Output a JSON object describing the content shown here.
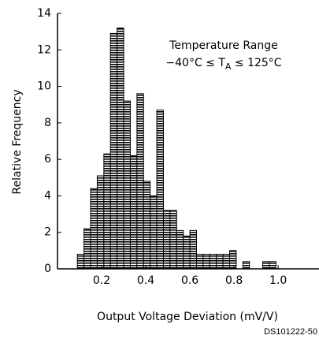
{
  "chart_data": {
    "type": "histogram",
    "annotation": [
      "Temperature Range",
      "−40°C ≤ T",
      "A",
      " ≤ 125°C"
    ],
    "xlabel": "Output Voltage Deviation (mV/V)",
    "ylabel": "Relative Frequency",
    "footer": "DS101222-50",
    "bins": [
      0.09,
      0.12,
      0.15,
      0.18,
      0.21,
      0.24,
      0.27,
      0.3,
      0.33,
      0.36,
      0.39,
      0.42,
      0.45,
      0.48,
      0.51,
      0.54,
      0.57,
      0.6,
      0.63,
      0.66,
      0.69,
      0.72,
      0.75,
      0.78,
      0.81,
      0.84,
      0.87,
      0.9,
      0.93,
      0.96,
      0.99
    ],
    "counts": [
      0.8,
      2.2,
      4.4,
      5.1,
      6.3,
      12.9,
      13.2,
      9.2,
      6.2,
      9.6,
      4.8,
      4.0,
      8.7,
      3.2,
      3.2,
      2.1,
      1.8,
      2.1,
      0.8,
      0.8,
      0.8,
      0.8,
      0.8,
      1.0,
      0,
      0.4,
      0,
      0,
      0.4,
      0.4
    ],
    "color": "#000000",
    "xlim": [
      0,
      1.185
    ],
    "ylim": [
      0,
      14
    ],
    "xticks": [
      {
        "value": 0.2,
        "label": "0.2"
      },
      {
        "value": 0.4,
        "label": "0.4"
      },
      {
        "value": 0.6,
        "label": "0.6"
      },
      {
        "value": 0.8,
        "label": "0.8"
      },
      {
        "value": 1.0,
        "label": "1.0"
      }
    ],
    "yticks": [
      0,
      2,
      4,
      6,
      8,
      10,
      12,
      14
    ]
  }
}
